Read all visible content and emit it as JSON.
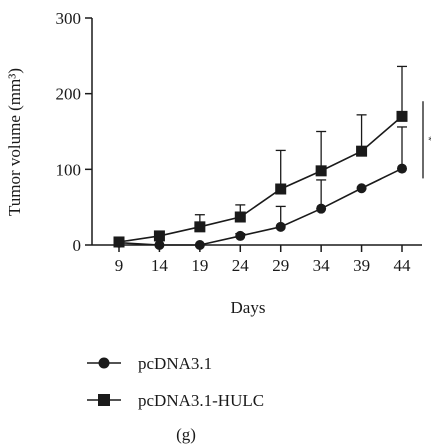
{
  "chart_data": {
    "type": "line",
    "xlabel": "Days",
    "ylabel": "Tumor volume (mm³)",
    "ylim": [
      0,
      300
    ],
    "yticks": [
      0,
      100,
      200,
      300
    ],
    "x": [
      9,
      14,
      19,
      24,
      29,
      34,
      39,
      44
    ],
    "series": [
      {
        "name": "pcDNA3.1",
        "marker": "circle",
        "values": [
          3,
          0,
          0,
          12,
          24,
          48,
          75,
          101
        ],
        "error_upper": [
          3,
          0,
          0,
          3,
          27,
          38,
          0,
          55
        ]
      },
      {
        "name": "pcDNA3.1-HULC",
        "marker": "square",
        "values": [
          4,
          12,
          24,
          37,
          74,
          98,
          124,
          170
        ],
        "error_upper": [
          0,
          0,
          16,
          16,
          51,
          52,
          48,
          66
        ]
      }
    ],
    "significance": "*",
    "grid": false,
    "legend_position": "bottom-left"
  },
  "panel_label": "(g)",
  "colors": {
    "ink": "#1a1a1a",
    "background": "#ffffff"
  }
}
